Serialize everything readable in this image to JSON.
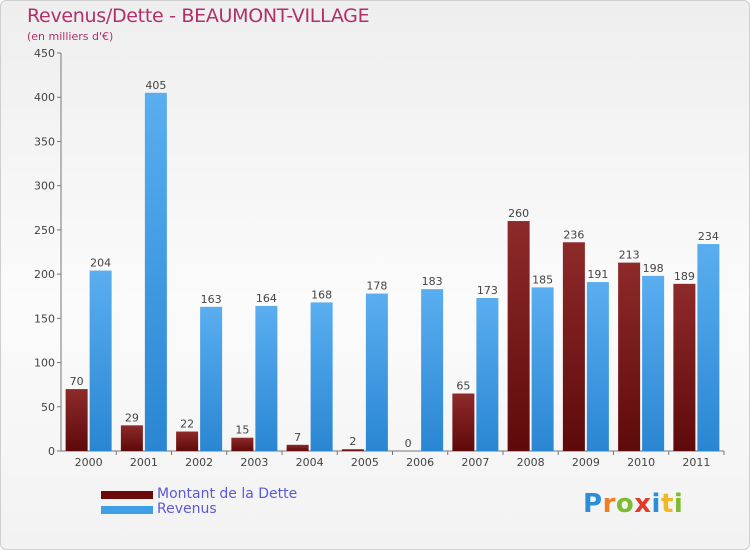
{
  "title": "Revenus/Dette - BEAUMONT-VILLAGE",
  "subtitle": "(en milliers d'€)",
  "legend": {
    "debt_label": "Montant de la Dette",
    "revenue_label": "Revenus"
  },
  "logo": {
    "letters": [
      "P",
      "r",
      "o",
      "x",
      "i",
      "t",
      "i"
    ],
    "colors": [
      "#2a8fd8",
      "#f07d22",
      "#7bbd2e",
      "#e23b2e",
      "#2a8fd8",
      "#f0b822",
      "#7bbd2e"
    ]
  },
  "colors": {
    "debt": "#7a1414",
    "revenue": "#3e9ee6",
    "title": "#b0306a",
    "legend_text": "#5a5ad8"
  },
  "chart_data": {
    "type": "bar",
    "title": "Revenus/Dette - BEAUMONT-VILLAGE",
    "ylabel": "(en milliers d'€)",
    "xlabel": "",
    "ylim": [
      0,
      450
    ],
    "yticks": [
      0,
      50,
      100,
      150,
      200,
      250,
      300,
      350,
      400,
      450
    ],
    "categories": [
      "2000",
      "2001",
      "2002",
      "2003",
      "2004",
      "2005",
      "2006",
      "2007",
      "2008",
      "2009",
      "2010",
      "2011"
    ],
    "series": [
      {
        "name": "Montant de la Dette",
        "values": [
          70,
          29,
          22,
          15,
          7,
          2,
          0,
          65,
          260,
          236,
          213,
          189
        ]
      },
      {
        "name": "Revenus",
        "values": [
          204,
          405,
          163,
          164,
          168,
          178,
          183,
          173,
          185,
          191,
          198,
          234
        ]
      }
    ]
  }
}
